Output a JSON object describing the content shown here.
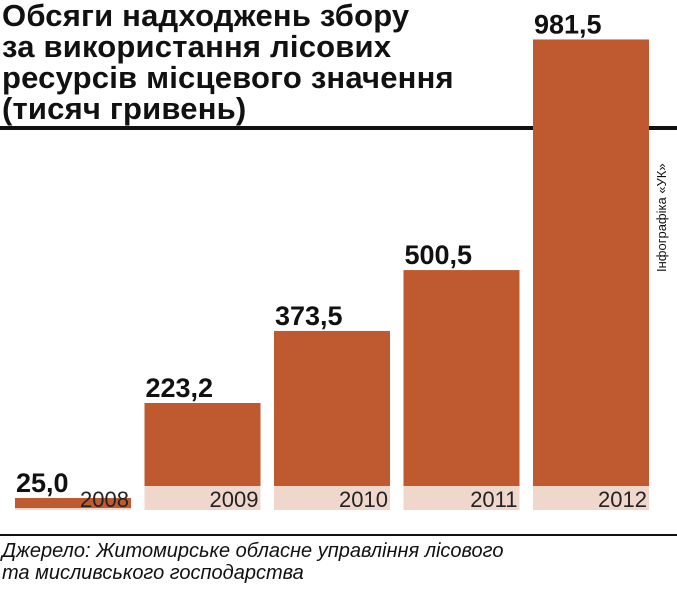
{
  "chart_data": {
    "type": "bar",
    "title": [
      "Обсяги надходжень збору",
      "за використання лісових",
      "ресурсів місцевого значення",
      "(тисяч гривень)"
    ],
    "categories": [
      "2008",
      "2009",
      "2010",
      "2011",
      "2012"
    ],
    "values": [
      25.0,
      223.2,
      373.5,
      500.5,
      981.5
    ],
    "value_labels": [
      "25,0",
      "223,2",
      "373,5",
      "500,5",
      "981,5"
    ],
    "ylim": [
      0,
      1000
    ],
    "grid": false,
    "bar_color": "#bf5a30",
    "base_band_color": "#f0d7cb"
  },
  "credit": "Інфографіка «УК»",
  "source": [
    "Джерело: Житомирське обласне управління лісового",
    "та мисливського господарства"
  ]
}
